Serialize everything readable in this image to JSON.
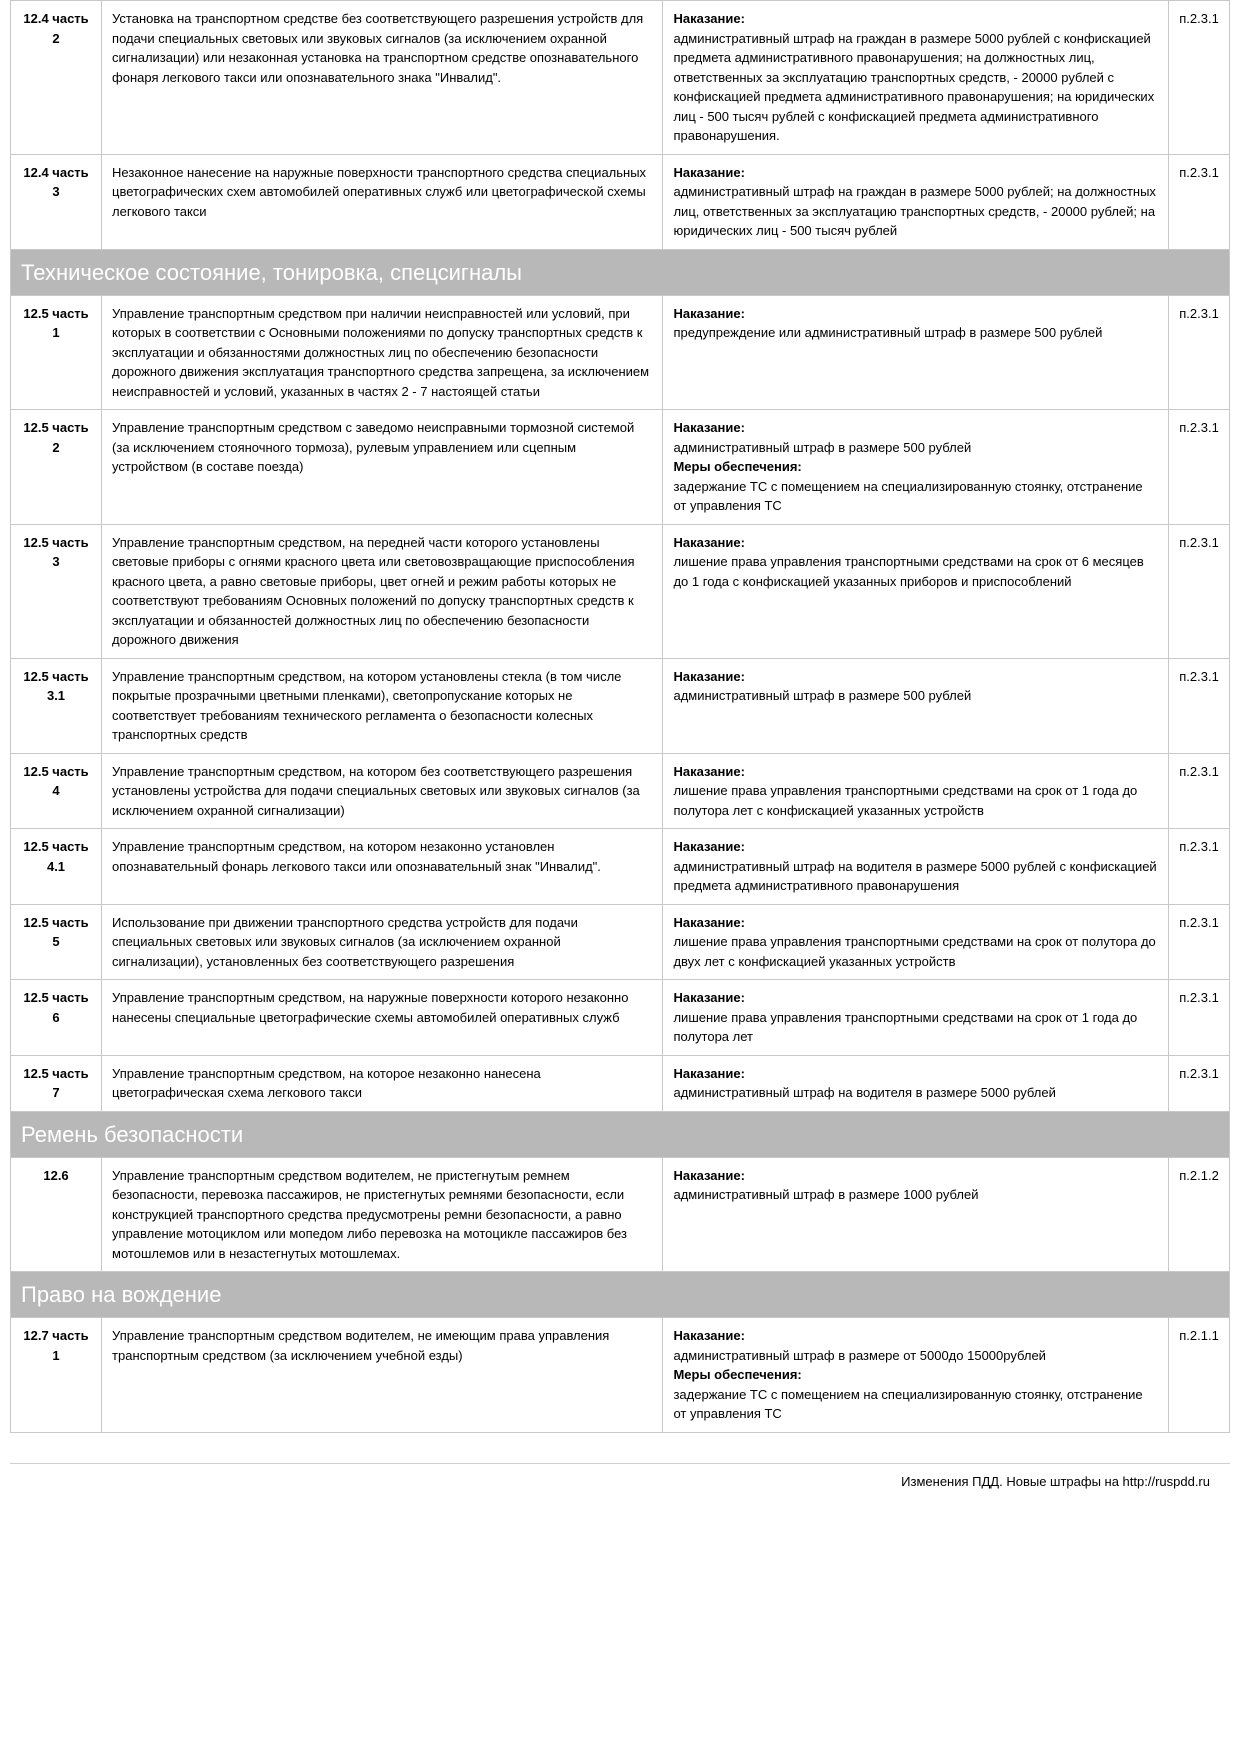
{
  "labels": {
    "penalty": "Наказание:",
    "measures": "Меры обеспечения:"
  },
  "footer": "Изменения ПДД. Новые штрафы на http://ruspdd.ru",
  "sections": [
    {
      "rows": [
        {
          "code": "12.4 часть 2",
          "desc": "Установка на транспортном средстве без соответствующего разрешения устройств для подачи специальных световых или звуковых сигналов (за исключением охранной сигнализации) или незаконная установка на транспортном средстве опознавательного фонаря легкового такси или опознавательного знака \"Инвалид\".",
          "penalty": "административный штраф на граждан в размере 5000 рублей с конфискацией предмета административного правонарушения; на должностных лиц, ответственных за эксплуатацию транспортных средств, - 20000 рублей с конфискацией предмета административного правонарушения; на юридических лиц - 500 тысяч рублей с конфискацией предмета административного правонарушения.",
          "measures": "",
          "ref": "п.2.3.1"
        },
        {
          "code": "12.4 часть 3",
          "desc": "Незаконное нанесение на наружные поверхности транспортного средства специальных цветографических схем автомобилей оперативных служб или цветографической схемы легкового такси",
          "penalty": "административный штраф на граждан в размере 5000 рублей; на должностных лиц, ответственных за эксплуатацию транспортных средств, - 20000 рублей; на юридических лиц - 500 тысяч рублей",
          "measures": "",
          "ref": "п.2.3.1"
        }
      ]
    },
    {
      "title": "Техническое состояние, тонировка, спецсигналы",
      "rows": [
        {
          "code": "12.5 часть 1",
          "desc": "Управление транспортным средством при наличии неисправностей или условий, при которых в соответствии с Основными положениями по допуску транспортных средств к эксплуатации и обязанностями должностных лиц по обеспечению безопасности дорожного движения эксплуатация транспортного средства запрещена, за исключением неисправностей и условий, указанных в частях 2 - 7 настоящей статьи",
          "penalty": "предупреждение или административный штраф в размере 500 рублей",
          "measures": "",
          "ref": "п.2.3.1"
        },
        {
          "code": "12.5 часть 2",
          "desc": "Управление транспортным средством с заведомо неисправными тормозной системой (за исключением стояночного тормоза), рулевым управлением или сцепным устройством (в составе поезда)",
          "penalty": "административный штраф в размере 500 рублей",
          "measures": "задержание ТС с помещением на специализированную стоянку, отстранение от управления ТС",
          "ref": "п.2.3.1"
        },
        {
          "code": "12.5 часть 3",
          "desc": "Управление транспортным средством, на передней части которого установлены световые приборы с огнями красного цвета или световозвращающие приспособления красного цвета, а равно световые приборы, цвет огней и режим работы которых не соответствуют требованиям Основных положений по допуску транспортных средств к эксплуатации и обязанностей должностных лиц по обеспечению безопасности дорожного движения",
          "penalty": "лишение права управления транспортными средствами на срок от 6 месяцев до 1 года с конфискацией указанных приборов и приспособлений",
          "measures": "",
          "ref": "п.2.3.1"
        },
        {
          "code": "12.5 часть 3.1",
          "desc": "Управление транспортным средством, на котором установлены стекла (в том числе покрытые прозрачными цветными пленками), светопропускание которых не соответствует требованиям технического регламента о безопасности колесных транспортных средств",
          "penalty": "административный штраф в размере 500 рублей",
          "measures": "",
          "ref": "п.2.3.1"
        },
        {
          "code": "12.5 часть 4",
          "desc": "Управление транспортным средством, на котором без соответствующего разрешения установлены устройства для подачи специальных световых или звуковых сигналов (за исключением охранной сигнализации)",
          "penalty": "лишение права управления транспортными средствами на срок от 1 года до полутора лет с конфискацией указанных устройств",
          "measures": "",
          "ref": "п.2.3.1"
        },
        {
          "code": "12.5 часть 4.1",
          "desc": "Управление транспортным средством, на котором незаконно установлен опознавательный фонарь легкового такси или опознавательный знак \"Инвалид\".",
          "penalty": "административный штраф на водителя в размере 5000 рублей с конфискацией предмета административного правонарушения",
          "measures": "",
          "ref": "п.2.3.1"
        },
        {
          "code": "12.5 часть 5",
          "desc": "Использование при движении транспортного средства устройств для подачи специальных световых или звуковых сигналов (за исключением охранной сигнализации), установленных без соответствующего разрешения",
          "penalty": "лишение права управления транспортными средствами на срок от полутора до двух лет с конфискацией указанных устройств",
          "measures": "",
          "ref": "п.2.3.1"
        },
        {
          "code": "12.5 часть 6",
          "desc": "Управление транспортным средством, на наружные поверхности которого незаконно нанесены специальные цветографические схемы автомобилей оперативных служб",
          "penalty": "лишение права управления транспортными средствами на срок от 1 года до полутора лет",
          "measures": "",
          "ref": "п.2.3.1"
        },
        {
          "code": "12.5 часть 7",
          "desc": "Управление транспортным средством, на которое незаконно нанесена цветографическая схема легкового такси",
          "penalty": "административный штраф на водителя в размере 5000 рублей",
          "measures": "",
          "ref": "п.2.3.1"
        }
      ]
    },
    {
      "title": "Ремень безопасности",
      "rows": [
        {
          "code": "12.6",
          "desc": "Управление транспортным средством водителем, не пристегнутым ремнем безопасности, перевозка пассажиров, не пристегнутых ремнями безопасности, если конструкцией транспортного средства предусмотрены ремни безопасности, а равно управление мотоциклом или мопедом либо перевозка на мотоцикле пассажиров без мотошлемов или в незастегнутых мотошлемах.",
          "penalty": "административный штраф в размере 1000  рублей",
          "measures": "",
          "ref": "п.2.1.2"
        }
      ]
    },
    {
      "title": "Право на вождение",
      "rows": [
        {
          "code": "12.7 часть 1",
          "desc": "Управление транспортным средством водителем, не имеющим права управления транспортным средством (за исключением учебной езды)",
          "penalty": "административный штраф в размере от 5000до 15000рублей",
          "measures": "задержание ТС с помещением на специализированную стоянку, отстранение от управления ТС",
          "ref": "п.2.1.1"
        }
      ]
    }
  ]
}
